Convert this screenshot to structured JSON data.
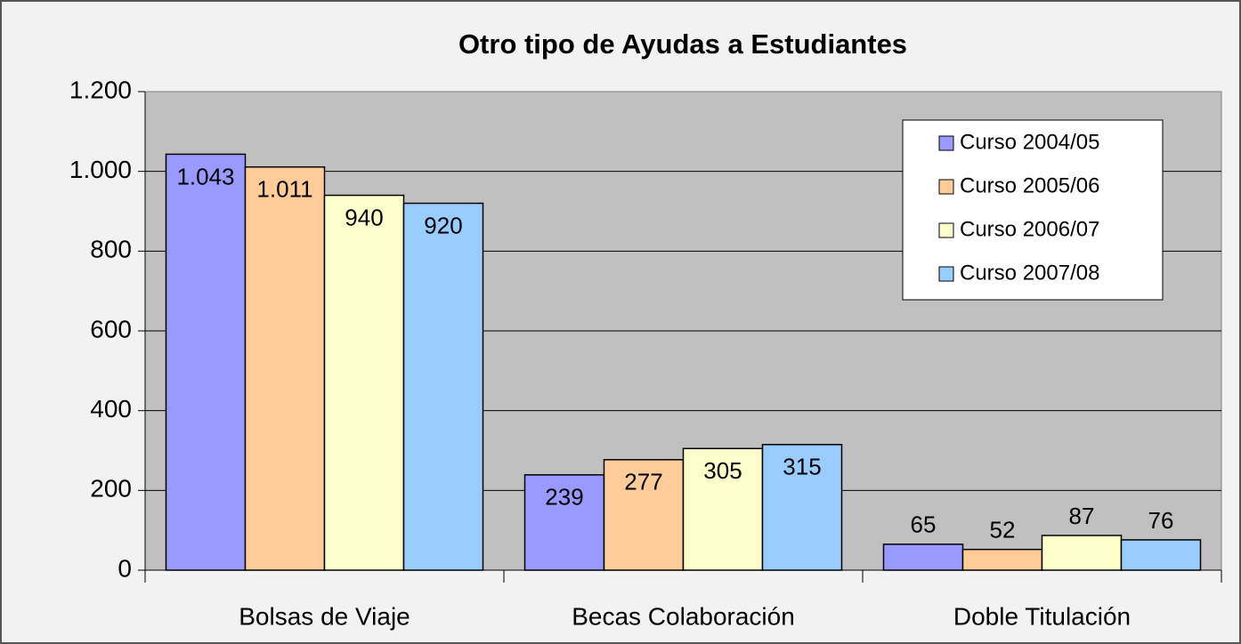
{
  "chart_data": {
    "type": "bar",
    "title": "Otro tipo de Ayudas a Estudiantes",
    "categories": [
      "Bolsas de Viaje",
      "Becas Colaboración",
      "Doble Titulación"
    ],
    "series": [
      {
        "name": "Curso 2004/05",
        "color": "#9999ff",
        "values": [
          1043,
          239,
          65
        ],
        "value_labels": [
          "1.043",
          "239",
          "65"
        ]
      },
      {
        "name": "Curso 2005/06",
        "color": "#ffcc99",
        "values": [
          1011,
          277,
          52
        ],
        "value_labels": [
          "1.011",
          "277",
          "52"
        ]
      },
      {
        "name": "Curso 2006/07",
        "color": "#ffffcc",
        "values": [
          940,
          305,
          87
        ],
        "value_labels": [
          "940",
          "305",
          "87"
        ]
      },
      {
        "name": "Curso 2007/08",
        "color": "#99ccff",
        "values": [
          920,
          315,
          76
        ],
        "value_labels": [
          "920",
          "315",
          "76"
        ]
      }
    ],
    "ylim": [
      0,
      1200
    ],
    "yticks": [
      0,
      200,
      400,
      600,
      800,
      {
        "value": 1000,
        "label": "1.000"
      },
      {
        "value": 1200,
        "label": "1.200"
      }
    ],
    "grid": true,
    "legend": "top-right"
  }
}
